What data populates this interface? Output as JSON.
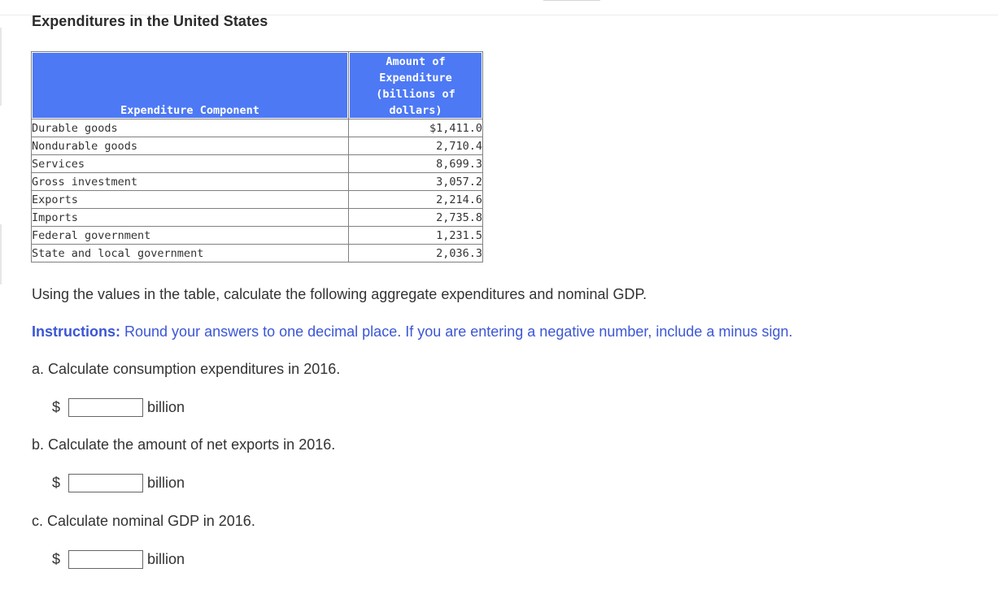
{
  "page": {
    "title": "Expenditures in the United States"
  },
  "table": {
    "headers": {
      "component": "Expenditure Component",
      "amount": "Amount of\nExpenditure\n(billions of\ndollars)"
    },
    "rows": [
      {
        "component": "Durable goods",
        "amount": "$1,411.0"
      },
      {
        "component": "Nondurable goods",
        "amount": "2,710.4"
      },
      {
        "component": "Services",
        "amount": "8,699.3"
      },
      {
        "component": "Gross investment",
        "amount": "3,057.2"
      },
      {
        "component": "Exports",
        "amount": "2,214.6"
      },
      {
        "component": "Imports",
        "amount": "2,735.8"
      },
      {
        "component": "Federal government",
        "amount": "1,231.5"
      },
      {
        "component": "State and local government",
        "amount": "2,036.3"
      }
    ]
  },
  "intro": "Using the values in the table, calculate the following aggregate expenditures and nominal GDP.",
  "instructions": {
    "label": "Instructions:",
    "text": " Round your answers to one decimal place. If you are entering a negative number, include a minus sign."
  },
  "questions": [
    {
      "text": "a. Calculate consumption expenditures in 2016.",
      "currency": "$",
      "value": "",
      "unit": "billion"
    },
    {
      "text": "b. Calculate the amount of net exports in 2016.",
      "currency": "$",
      "value": "",
      "unit": "billion"
    },
    {
      "text": "c. Calculate nominal GDP in 2016.",
      "currency": "$",
      "value": "",
      "unit": "billion"
    }
  ]
}
